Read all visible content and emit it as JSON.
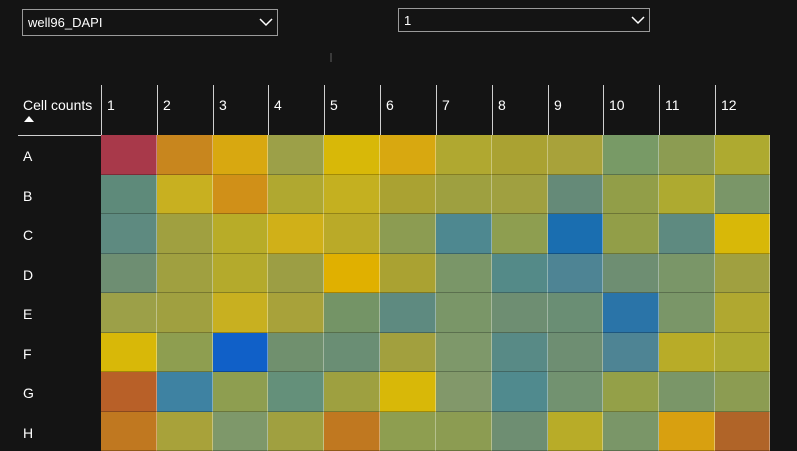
{
  "well_select": {
    "value": "well96_DAPI"
  },
  "field_select": {
    "value": "1"
  },
  "table": {
    "corner_label": "Cell counts",
    "columns": [
      "1",
      "2",
      "3",
      "4",
      "5",
      "6",
      "7",
      "8",
      "9",
      "10",
      "11",
      "12"
    ],
    "rows": [
      "A",
      "B",
      "C",
      "D",
      "E",
      "F",
      "G",
      "H"
    ],
    "colors": [
      [
        "#A8394A",
        "#C8861E",
        "#D8A810",
        "#9CA048",
        "#D8B808",
        "#D8A810",
        "#B0A830",
        "#AAA232",
        "#A8A23A",
        "#789A66",
        "#8C9C52",
        "#AEAA30"
      ],
      [
        "#5E8A7A",
        "#C8B020",
        "#D09018",
        "#B0A830",
        "#C4B020",
        "#AAA232",
        "#9EA040",
        "#A0A040",
        "#658A78",
        "#929E48",
        "#AEAA30",
        "#7A9668"
      ],
      [
        "#5E8A80",
        "#A0A040",
        "#B8AC28",
        "#D0B018",
        "#BAAA28",
        "#8C9C52",
        "#4E8890",
        "#8E9E50",
        "#1A6EB0",
        "#929E48",
        "#5E8A80",
        "#D8B808"
      ],
      [
        "#6E8E72",
        "#A0A040",
        "#B4AA2C",
        "#9C9E44",
        "#E0B000",
        "#AAA232",
        "#7A9668",
        "#548A88",
        "#4E8494",
        "#6E8E72",
        "#7A9668",
        "#A0A040"
      ],
      [
        "#9CA048",
        "#A0A040",
        "#C8B020",
        "#A8A23A",
        "#749466",
        "#5E8A80",
        "#7A9668",
        "#6E8E72",
        "#6A8E74",
        "#2A74A8",
        "#7A9668",
        "#B0A830"
      ],
      [
        "#D8B808",
        "#8E9E50",
        "#1060C8",
        "#70906E",
        "#6A8E74",
        "#A2A03E",
        "#7E986A",
        "#588A86",
        "#6E8E72",
        "#4E8494",
        "#B8AC28",
        "#AEAA30"
      ],
      [
        "#B86028",
        "#3E82A2",
        "#8E9E50",
        "#64907A",
        "#9EA040",
        "#D8B808",
        "#82986A",
        "#508A8E",
        "#729270",
        "#94A048",
        "#7A9668",
        "#8C9C52"
      ],
      [
        "#C07820",
        "#A8A23A",
        "#7E986A",
        "#A0A040",
        "#C07820",
        "#8E9E50",
        "#8C9C52",
        "#6E8E72",
        "#B8AC28",
        "#7A9668",
        "#D8A010",
        "#B06428"
      ]
    ]
  }
}
